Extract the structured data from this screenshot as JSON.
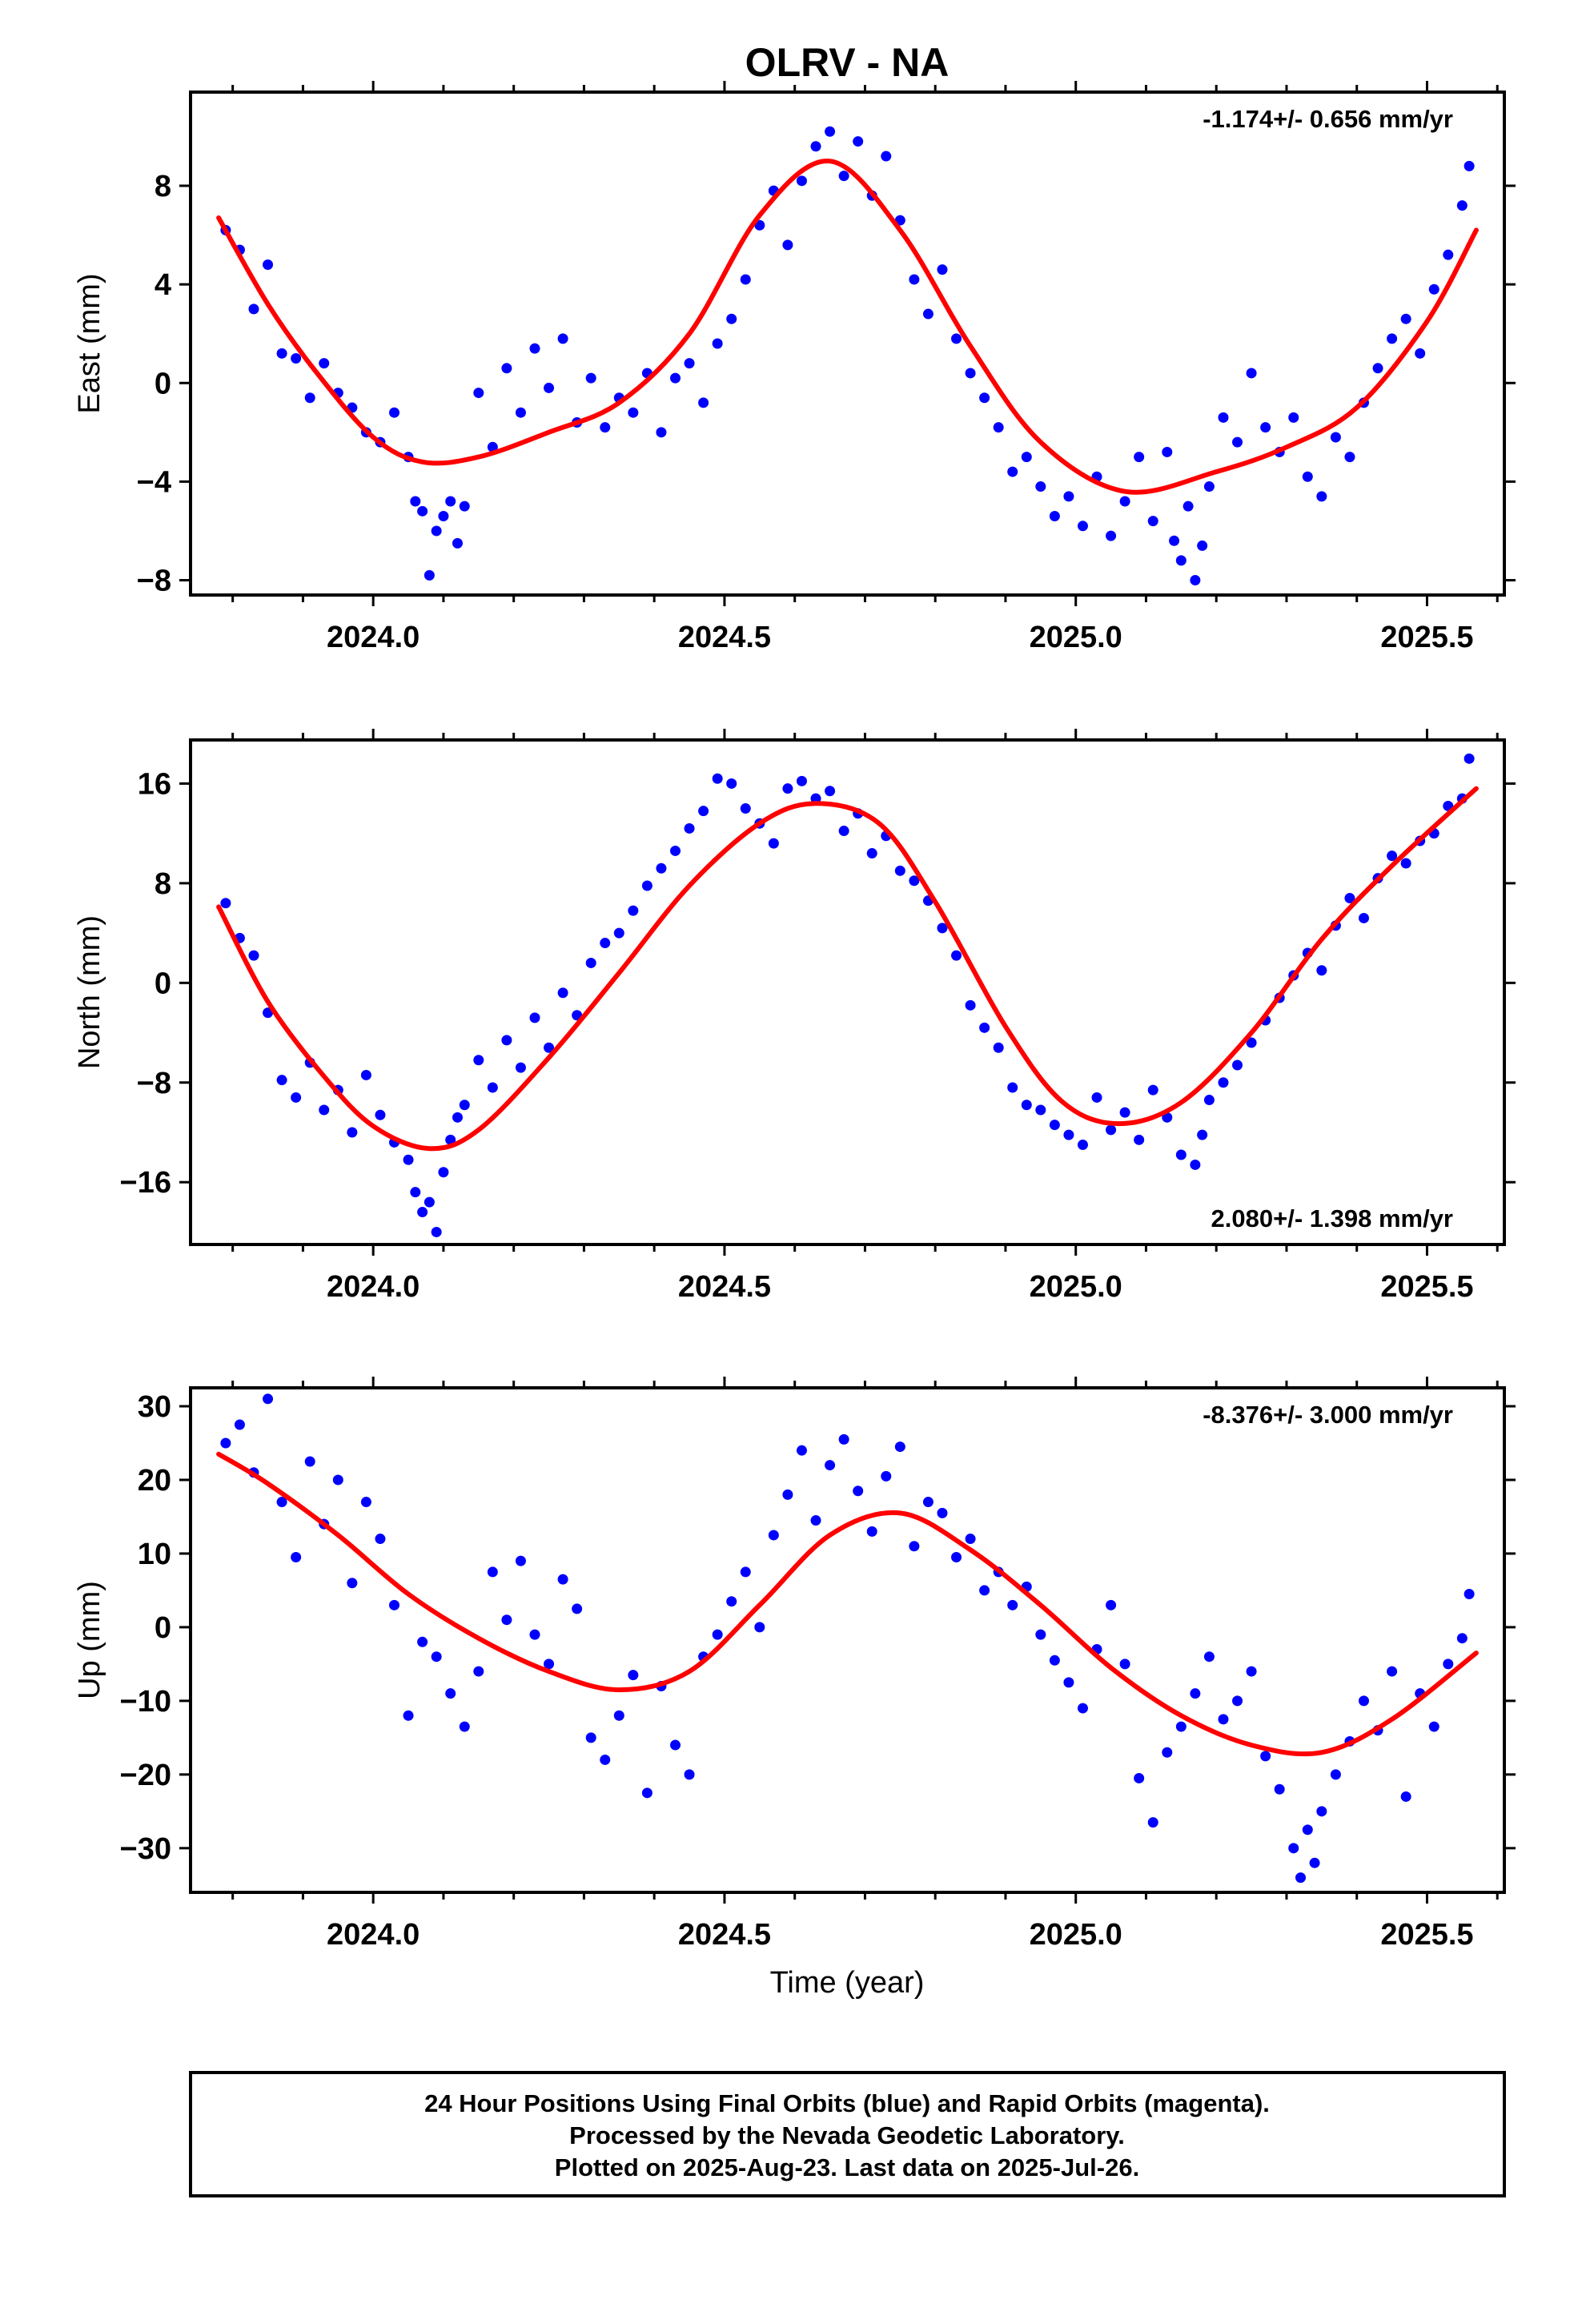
{
  "title": "OLRV - NA",
  "xlabel": "Time (year)",
  "colors": {
    "final_orbits": "#0000ff",
    "fit": "#ff0000",
    "rapid_orbits": "#ff00ff",
    "axes": "#000000"
  },
  "footer": {
    "line1": "24 Hour Positions Using Final Orbits (blue) and Rapid Orbits (magenta).",
    "line2": "Processed by the Nevada Geodetic Laboratory.",
    "line3": "Plotted on 2025-Aug-23. Last data on 2025-Jul-26."
  },
  "chart_data": [
    {
      "type": "scatter",
      "ylabel": "East (mm)",
      "rate": "-1.174+/- 0.656 mm/yr",
      "xlim": [
        2023.74,
        2025.61
      ],
      "ylim": [
        -8.6,
        11.8
      ],
      "yticks": [
        -8,
        -4,
        0,
        4,
        8
      ],
      "ytick_labels": [
        "−8",
        "−4",
        "0",
        "4",
        "8"
      ],
      "xticks": [
        2024.0,
        2024.5,
        2025.0,
        2025.5
      ],
      "xtick_labels": [
        "2024.0",
        "2024.5",
        "2025.0",
        "2025.5"
      ],
      "fit": {
        "x": [
          2023.78,
          2023.85,
          2023.92,
          2024.0,
          2024.07,
          2024.15,
          2024.25,
          2024.35,
          2024.45,
          2024.55,
          2024.65,
          2024.75,
          2024.85,
          2024.95,
          2025.07,
          2025.2,
          2025.3,
          2025.4,
          2025.5,
          2025.57
        ],
        "y": [
          6.7,
          3.2,
          0.4,
          -2.2,
          -3.2,
          -3.0,
          -2.0,
          -0.8,
          2.0,
          6.8,
          9.0,
          6.2,
          1.5,
          -2.4,
          -4.4,
          -3.6,
          -2.6,
          -1.0,
          2.5,
          6.2
        ]
      },
      "points": {
        "x": [
          2023.79,
          2023.81,
          2023.83,
          2023.85,
          2023.87,
          2023.89,
          2023.91,
          2023.93,
          2023.95,
          2023.97,
          2023.99,
          2024.01,
          2024.03,
          2024.05,
          2024.06,
          2024.07,
          2024.08,
          2024.09,
          2024.1,
          2024.11,
          2024.12,
          2024.13,
          2024.15,
          2024.17,
          2024.19,
          2024.21,
          2024.23,
          2024.25,
          2024.27,
          2024.29,
          2024.31,
          2024.33,
          2024.35,
          2024.37,
          2024.39,
          2024.41,
          2024.43,
          2024.45,
          2024.47,
          2024.49,
          2024.51,
          2024.53,
          2024.55,
          2024.57,
          2024.59,
          2024.61,
          2024.63,
          2024.65,
          2024.67,
          2024.69,
          2024.71,
          2024.73,
          2024.75,
          2024.77,
          2024.79,
          2024.81,
          2024.83,
          2024.85,
          2024.87,
          2024.89,
          2024.91,
          2024.93,
          2024.95,
          2024.97,
          2024.99,
          2025.01,
          2025.03,
          2025.05,
          2025.07,
          2025.09,
          2025.11,
          2025.13,
          2025.14,
          2025.15,
          2025.16,
          2025.17,
          2025.18,
          2025.19,
          2025.21,
          2025.23,
          2025.25,
          2025.27,
          2025.29,
          2025.31,
          2025.33,
          2025.35,
          2025.37,
          2025.39,
          2025.41,
          2025.43,
          2025.45,
          2025.47,
          2025.49,
          2025.51,
          2025.53,
          2025.55,
          2025.56
        ],
        "y": [
          6.2,
          5.4,
          3.0,
          4.8,
          1.2,
          1.0,
          -0.6,
          0.8,
          -0.4,
          -1.0,
          -2.0,
          -2.4,
          -1.2,
          -3.0,
          -4.8,
          -5.2,
          -7.8,
          -6.0,
          -5.4,
          -4.8,
          -6.5,
          -5.0,
          -0.4,
          -2.6,
          0.6,
          -1.2,
          1.4,
          -0.2,
          1.8,
          -1.6,
          0.2,
          -1.8,
          -0.6,
          -1.2,
          0.4,
          -2.0,
          0.2,
          0.8,
          -0.8,
          1.6,
          2.6,
          4.2,
          6.4,
          7.8,
          5.6,
          8.2,
          9.6,
          10.2,
          8.4,
          9.8,
          7.6,
          9.2,
          6.6,
          4.2,
          2.8,
          4.6,
          1.8,
          0.4,
          -0.6,
          -1.8,
          -3.6,
          -3.0,
          -4.2,
          -5.4,
          -4.6,
          -5.8,
          -3.8,
          -6.2,
          -4.8,
          -3.0,
          -5.6,
          -2.8,
          -6.4,
          -7.2,
          -5.0,
          -8.0,
          -6.6,
          -4.2,
          -1.4,
          -2.4,
          0.4,
          -1.8,
          -2.8,
          -1.4,
          -3.8,
          -4.6,
          -2.2,
          -3.0,
          -0.8,
          0.6,
          1.8,
          2.6,
          1.2,
          3.8,
          5.2,
          7.2,
          8.8
        ]
      }
    },
    {
      "type": "scatter",
      "ylabel": "North (mm)",
      "rate": "2.080+/- 1.398 mm/yr",
      "xlim": [
        2023.74,
        2025.61
      ],
      "ylim": [
        -21.0,
        19.5
      ],
      "yticks": [
        -16,
        -8,
        0,
        8,
        16
      ],
      "ytick_labels": [
        "−16",
        "−8",
        "0",
        "8",
        "16"
      ],
      "xticks": [
        2024.0,
        2024.5,
        2025.0,
        2025.5
      ],
      "xtick_labels": [
        "2024.0",
        "2024.5",
        "2025.0",
        "2025.5"
      ],
      "fit": {
        "x": [
          2023.78,
          2023.85,
          2023.93,
          2024.0,
          2024.08,
          2024.15,
          2024.25,
          2024.35,
          2024.45,
          2024.55,
          2024.63,
          2024.72,
          2024.8,
          2024.9,
          2024.98,
          2025.06,
          2025.15,
          2025.25,
          2025.35,
          2025.45,
          2025.57
        ],
        "y": [
          6.1,
          -1.5,
          -7.5,
          -11.5,
          -13.3,
          -11.8,
          -6.0,
          0.8,
          7.8,
          12.8,
          14.4,
          12.8,
          6.5,
          -3.5,
          -9.5,
          -11.3,
          -9.6,
          -4.0,
          3.5,
          9.4,
          15.6
        ]
      },
      "points": {
        "x": [
          2023.79,
          2023.81,
          2023.83,
          2023.85,
          2023.87,
          2023.89,
          2023.91,
          2023.93,
          2023.95,
          2023.97,
          2023.99,
          2024.01,
          2024.03,
          2024.05,
          2024.06,
          2024.07,
          2024.08,
          2024.09,
          2024.1,
          2024.11,
          2024.12,
          2024.13,
          2024.15,
          2024.17,
          2024.19,
          2024.21,
          2024.23,
          2024.25,
          2024.27,
          2024.29,
          2024.31,
          2024.33,
          2024.35,
          2024.37,
          2024.39,
          2024.41,
          2024.43,
          2024.45,
          2024.47,
          2024.49,
          2024.51,
          2024.53,
          2024.55,
          2024.57,
          2024.59,
          2024.61,
          2024.63,
          2024.65,
          2024.67,
          2024.69,
          2024.71,
          2024.73,
          2024.75,
          2024.77,
          2024.79,
          2024.81,
          2024.83,
          2024.85,
          2024.87,
          2024.89,
          2024.91,
          2024.93,
          2024.95,
          2024.97,
          2024.99,
          2025.01,
          2025.03,
          2025.05,
          2025.07,
          2025.09,
          2025.11,
          2025.13,
          2025.15,
          2025.17,
          2025.18,
          2025.19,
          2025.21,
          2025.23,
          2025.25,
          2025.27,
          2025.29,
          2025.31,
          2025.33,
          2025.35,
          2025.37,
          2025.39,
          2025.41,
          2025.43,
          2025.45,
          2025.47,
          2025.49,
          2025.51,
          2025.53,
          2025.55,
          2025.56
        ],
        "y": [
          6.4,
          3.6,
          2.2,
          -2.4,
          -7.8,
          -9.2,
          -6.4,
          -10.2,
          -8.6,
          -12.0,
          -7.4,
          -10.6,
          -12.8,
          -14.2,
          -16.8,
          -18.4,
          -17.6,
          -20.0,
          -15.2,
          -12.6,
          -10.8,
          -9.8,
          -6.2,
          -8.4,
          -4.6,
          -6.8,
          -2.8,
          -5.2,
          -0.8,
          -2.6,
          1.6,
          3.2,
          4.0,
          5.8,
          7.8,
          9.2,
          10.6,
          12.4,
          13.8,
          16.4,
          16.0,
          14.0,
          12.8,
          11.2,
          15.6,
          16.2,
          14.8,
          15.4,
          12.2,
          13.6,
          10.4,
          11.8,
          9.0,
          8.2,
          6.6,
          4.4,
          2.2,
          -1.8,
          -3.6,
          -5.2,
          -8.4,
          -9.8,
          -10.2,
          -11.4,
          -12.2,
          -13.0,
          -9.2,
          -11.8,
          -10.4,
          -12.6,
          -8.6,
          -10.8,
          -13.8,
          -14.6,
          -12.2,
          -9.4,
          -8.0,
          -6.6,
          -4.8,
          -3.0,
          -1.2,
          0.6,
          2.4,
          1.0,
          4.6,
          6.8,
          5.2,
          8.4,
          10.2,
          9.6,
          11.4,
          12.0,
          14.2,
          14.8,
          18.0
        ]
      }
    },
    {
      "type": "scatter",
      "ylabel": "Up (mm)",
      "rate": "-8.376+/- 3.000 mm/yr",
      "xlim": [
        2023.74,
        2025.61
      ],
      "ylim": [
        -36.0,
        32.5
      ],
      "yticks": [
        -30,
        -20,
        -10,
        0,
        10,
        20,
        30
      ],
      "ytick_labels": [
        "−30",
        "−20",
        "−10",
        "0",
        "10",
        "20",
        "30"
      ],
      "xticks": [
        2024.0,
        2024.5,
        2025.0,
        2025.5
      ],
      "xtick_labels": [
        "2024.0",
        "2024.5",
        "2025.0",
        "2025.5"
      ],
      "fit": {
        "x": [
          2023.78,
          2023.85,
          2023.95,
          2024.05,
          2024.15,
          2024.25,
          2024.35,
          2024.45,
          2024.55,
          2024.65,
          2024.75,
          2024.85,
          2024.95,
          2025.05,
          2025.15,
          2025.25,
          2025.35,
          2025.45,
          2025.57
        ],
        "y": [
          23.5,
          19.5,
          12.5,
          4.5,
          -1.5,
          -6.0,
          -8.5,
          -6.0,
          3.0,
          12.5,
          15.5,
          10.5,
          3.0,
          -5.5,
          -12.0,
          -16.0,
          -17.0,
          -12.5,
          -3.5
        ]
      },
      "points": {
        "x": [
          2023.79,
          2023.81,
          2023.83,
          2023.85,
          2023.87,
          2023.89,
          2023.91,
          2023.93,
          2023.95,
          2023.97,
          2023.99,
          2024.01,
          2024.03,
          2024.05,
          2024.07,
          2024.09,
          2024.11,
          2024.13,
          2024.15,
          2024.17,
          2024.19,
          2024.21,
          2024.23,
          2024.25,
          2024.27,
          2024.29,
          2024.31,
          2024.33,
          2024.35,
          2024.37,
          2024.39,
          2024.41,
          2024.43,
          2024.45,
          2024.47,
          2024.49,
          2024.51,
          2024.53,
          2024.55,
          2024.57,
          2024.59,
          2024.61,
          2024.63,
          2024.65,
          2024.67,
          2024.69,
          2024.71,
          2024.73,
          2024.75,
          2024.77,
          2024.79,
          2024.81,
          2024.83,
          2024.85,
          2024.87,
          2024.89,
          2024.91,
          2024.93,
          2024.95,
          2024.97,
          2024.99,
          2025.01,
          2025.03,
          2025.05,
          2025.07,
          2025.09,
          2025.11,
          2025.13,
          2025.15,
          2025.17,
          2025.19,
          2025.21,
          2025.23,
          2025.25,
          2025.27,
          2025.29,
          2025.31,
          2025.32,
          2025.33,
          2025.34,
          2025.35,
          2025.37,
          2025.39,
          2025.41,
          2025.43,
          2025.45,
          2025.47,
          2025.49,
          2025.51,
          2025.53,
          2025.55,
          2025.56
        ],
        "y": [
          25.0,
          27.5,
          21.0,
          31.0,
          17.0,
          9.5,
          22.5,
          14.0,
          20.0,
          6.0,
          17.0,
          12.0,
          3.0,
          -12.0,
          -2.0,
          -4.0,
          -9.0,
          -13.5,
          -6.0,
          7.5,
          1.0,
          9.0,
          -1.0,
          -5.0,
          6.5,
          2.5,
          -15.0,
          -18.0,
          -12.0,
          -6.5,
          -22.5,
          -8.0,
          -16.0,
          -20.0,
          -4.0,
          -1.0,
          3.5,
          7.5,
          0.0,
          12.5,
          18.0,
          24.0,
          14.5,
          22.0,
          25.5,
          18.5,
          13.0,
          20.5,
          24.5,
          11.0,
          17.0,
          15.5,
          9.5,
          12.0,
          5.0,
          7.5,
          3.0,
          5.5,
          -1.0,
          -4.5,
          -7.5,
          -11.0,
          -3.0,
          3.0,
          -5.0,
          -20.5,
          -26.5,
          -17.0,
          -13.5,
          -9.0,
          -4.0,
          -12.5,
          -10.0,
          -6.0,
          -17.5,
          -22.0,
          -30.0,
          -34.0,
          -27.5,
          -32.0,
          -25.0,
          -20.0,
          -15.5,
          -10.0,
          -14.0,
          -6.0,
          -23.0,
          -9.0,
          -13.5,
          -5.0,
          -1.5,
          4.5
        ]
      }
    }
  ]
}
